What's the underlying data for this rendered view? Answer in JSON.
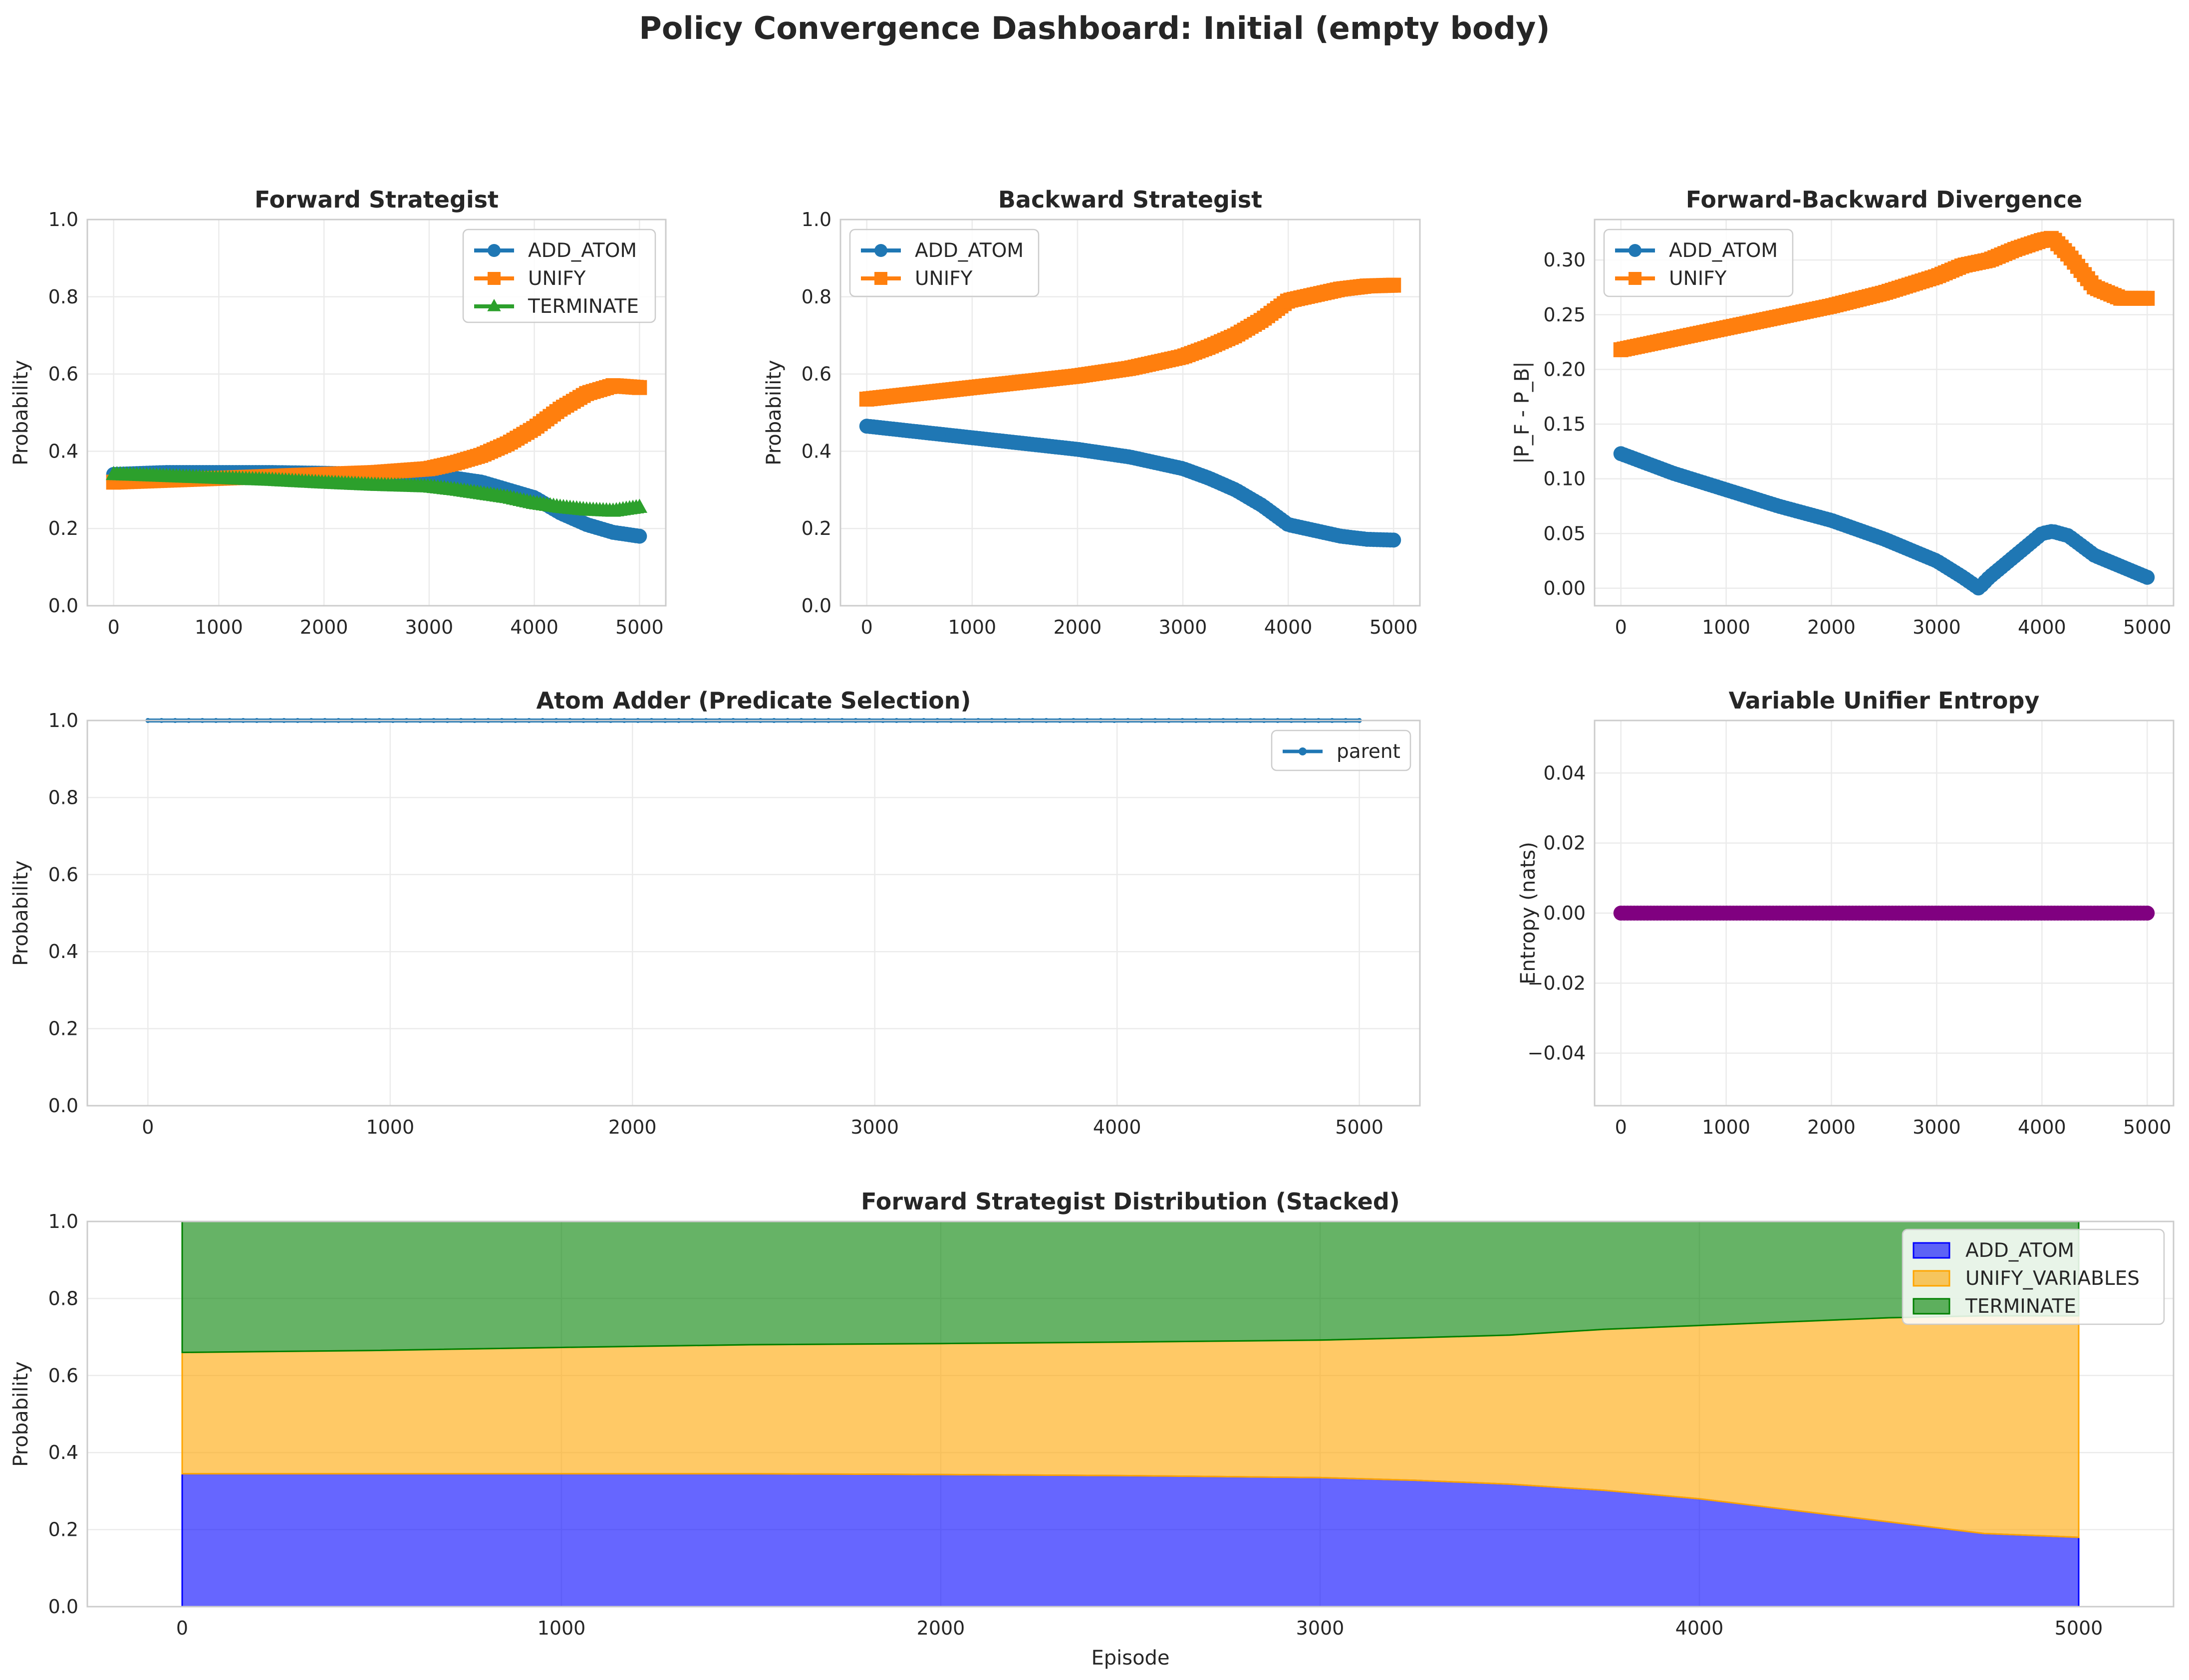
{
  "figure": {
    "title": "Policy Convergence Dashboard: Initial (empty body)"
  },
  "colors": {
    "add_atom": "#1f77b4",
    "unify": "#ff7f0e",
    "terminate": "#2ca02c",
    "entropy": "#800080",
    "stack_add_atom": "#0000ff",
    "stack_unify": "#ffa500",
    "stack_terminate": "#008000"
  },
  "chart_data": [
    {
      "id": "forward",
      "type": "line",
      "title": "Forward Strategist",
      "ylabel": "Probability",
      "xlabel": "",
      "xlim": [
        -250,
        5250
      ],
      "ylim": [
        0,
        1
      ],
      "xticks": [
        "0",
        "1000",
        "2000",
        "3000",
        "4000",
        "5000"
      ],
      "yticks": [
        "0.0",
        "0.2",
        "0.4",
        "0.6",
        "0.8",
        "1.0"
      ],
      "grid": true,
      "legend": "top-right",
      "x": [
        0,
        500,
        1000,
        1500,
        2000,
        2500,
        3000,
        3250,
        3500,
        3750,
        4000,
        4250,
        4500,
        4750,
        5000
      ],
      "series": [
        {
          "name": "ADD_ATOM",
          "marker": "circle",
          "values": [
            0.34,
            0.345,
            0.345,
            0.345,
            0.343,
            0.34,
            0.335,
            0.33,
            0.32,
            0.3,
            0.28,
            0.24,
            0.21,
            0.19,
            0.18
          ]
        },
        {
          "name": "UNIFY",
          "marker": "square",
          "values": [
            0.32,
            0.325,
            0.33,
            0.335,
            0.34,
            0.345,
            0.355,
            0.37,
            0.39,
            0.42,
            0.46,
            0.51,
            0.55,
            0.57,
            0.565
          ]
        },
        {
          "name": "TERMINATE",
          "marker": "triangle",
          "values": [
            0.34,
            0.335,
            0.33,
            0.325,
            0.318,
            0.312,
            0.308,
            0.3,
            0.29,
            0.28,
            0.265,
            0.255,
            0.248,
            0.245,
            0.255
          ]
        }
      ]
    },
    {
      "id": "backward",
      "type": "line",
      "title": "Backward Strategist",
      "ylabel": "Probability",
      "xlabel": "",
      "xlim": [
        -250,
        5250
      ],
      "ylim": [
        0,
        1
      ],
      "xticks": [
        "0",
        "1000",
        "2000",
        "3000",
        "4000",
        "5000"
      ],
      "yticks": [
        "0.0",
        "0.2",
        "0.4",
        "0.6",
        "0.8",
        "1.0"
      ],
      "grid": true,
      "legend": "top-left",
      "x": [
        0,
        500,
        1000,
        1500,
        2000,
        2500,
        3000,
        3250,
        3500,
        3750,
        4000,
        4250,
        4500,
        4750,
        5000
      ],
      "series": [
        {
          "name": "ADD_ATOM",
          "marker": "circle",
          "values": [
            0.465,
            0.45,
            0.435,
            0.42,
            0.405,
            0.385,
            0.355,
            0.33,
            0.3,
            0.26,
            0.21,
            0.195,
            0.18,
            0.172,
            0.17
          ]
        },
        {
          "name": "UNIFY",
          "marker": "square",
          "values": [
            0.535,
            0.55,
            0.565,
            0.58,
            0.595,
            0.615,
            0.645,
            0.67,
            0.7,
            0.74,
            0.79,
            0.805,
            0.82,
            0.828,
            0.83
          ]
        }
      ]
    },
    {
      "id": "divergence",
      "type": "line",
      "title": "Forward-Backward Divergence",
      "ylabel": "|P_F - P_B|",
      "xlabel": "",
      "xlim": [
        -250,
        5250
      ],
      "ylim": [
        -0.016,
        0.337
      ],
      "xticks": [
        "0",
        "1000",
        "2000",
        "3000",
        "4000",
        "5000"
      ],
      "yticks": [
        "0.00",
        "0.05",
        "0.10",
        "0.15",
        "0.20",
        "0.25",
        "0.30"
      ],
      "grid": true,
      "legend": "top-left",
      "x": [
        0,
        500,
        1000,
        1500,
        2000,
        2500,
        3000,
        3250,
        3400,
        3500,
        3750,
        4000,
        4100,
        4250,
        4500,
        4750,
        5000
      ],
      "series": [
        {
          "name": "ADD_ATOM",
          "marker": "circle",
          "values": [
            0.123,
            0.105,
            0.09,
            0.075,
            0.062,
            0.045,
            0.025,
            0.01,
            0.0,
            0.01,
            0.03,
            0.05,
            0.052,
            0.048,
            0.03,
            0.02,
            0.01
          ]
        },
        {
          "name": "UNIFY",
          "marker": "square",
          "values": [
            0.218,
            0.228,
            0.238,
            0.248,
            0.258,
            0.27,
            0.285,
            0.295,
            0.298,
            0.3,
            0.31,
            0.318,
            0.32,
            0.305,
            0.275,
            0.265,
            0.265
          ]
        }
      ]
    },
    {
      "id": "atom_adder",
      "type": "line",
      "title": "Atom Adder (Predicate Selection)",
      "ylabel": "Probability",
      "xlabel": "",
      "xlim": [
        -250,
        5250
      ],
      "ylim": [
        0,
        1
      ],
      "xticks": [
        "0",
        "1000",
        "2000",
        "3000",
        "4000",
        "5000"
      ],
      "yticks": [
        "0.0",
        "0.2",
        "0.4",
        "0.6",
        "0.8",
        "1.0"
      ],
      "grid": true,
      "legend": "top-right",
      "x": [
        0,
        5000
      ],
      "series": [
        {
          "name": "parent",
          "marker": "circle",
          "values": [
            1.0,
            1.0
          ]
        }
      ]
    },
    {
      "id": "entropy",
      "type": "line",
      "title": "Variable Unifier Entropy",
      "ylabel": "Entropy (nats)",
      "xlabel": "",
      "xlim": [
        -250,
        5250
      ],
      "ylim": [
        -0.055,
        0.055
      ],
      "xticks": [
        "0",
        "1000",
        "2000",
        "3000",
        "4000",
        "5000"
      ],
      "yticks": [
        "−0.04",
        "−0.02",
        "0.00",
        "0.02",
        "0.04"
      ],
      "grid": true,
      "legend": "none",
      "x": [
        0,
        5000
      ],
      "series": [
        {
          "marker": "circle",
          "values": [
            0.0,
            0.0
          ]
        }
      ]
    },
    {
      "id": "stacked",
      "type": "area",
      "stacked": true,
      "title": "Forward Strategist Distribution (Stacked)",
      "ylabel": "Probability",
      "xlabel": "Episode",
      "xlim": [
        -250,
        5250
      ],
      "ylim": [
        0,
        1
      ],
      "xticks": [
        "0",
        "1000",
        "2000",
        "3000",
        "4000",
        "5000"
      ],
      "yticks": [
        "0.0",
        "0.2",
        "0.4",
        "0.6",
        "0.8",
        "1.0"
      ],
      "grid": true,
      "legend": "top-right",
      "x": [
        0,
        500,
        1000,
        1500,
        2000,
        2500,
        3000,
        3250,
        3500,
        3750,
        4000,
        4250,
        4500,
        4750,
        5000
      ],
      "series": [
        {
          "name": "ADD_ATOM",
          "values": [
            0.345,
            0.345,
            0.345,
            0.345,
            0.343,
            0.34,
            0.335,
            0.328,
            0.318,
            0.302,
            0.28,
            0.25,
            0.22,
            0.19,
            0.18
          ]
        },
        {
          "name": "UNIFY_VARIABLES",
          "values": [
            0.315,
            0.32,
            0.328,
            0.335,
            0.34,
            0.347,
            0.357,
            0.37,
            0.387,
            0.418,
            0.45,
            0.49,
            0.53,
            0.565,
            0.575
          ]
        },
        {
          "name": "TERMINATE",
          "values": [
            0.34,
            0.335,
            0.327,
            0.32,
            0.317,
            0.313,
            0.308,
            0.302,
            0.295,
            0.28,
            0.27,
            0.26,
            0.25,
            0.245,
            0.245
          ]
        }
      ]
    }
  ]
}
